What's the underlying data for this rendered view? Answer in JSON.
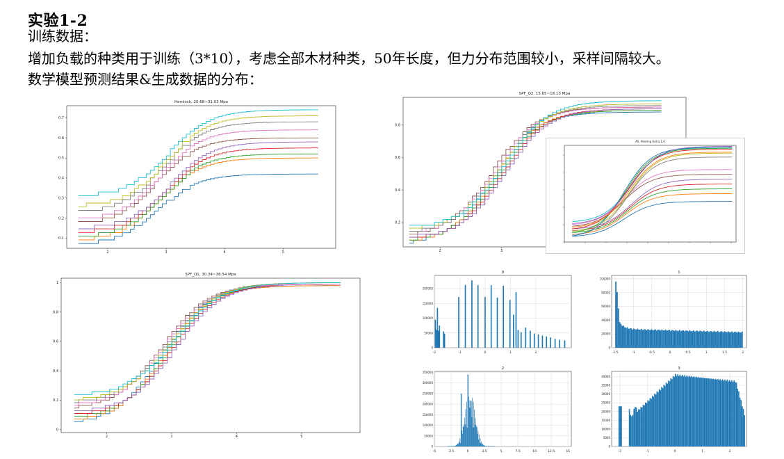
{
  "slide": {
    "title": "实验1-2",
    "line1": "训练数据：",
    "line2": "增加负载的种类用于训练（3*10），考虑全部木材种类，50年长度，但力分布范围较小，采样间隔较大。",
    "line3": "数学模型预测结果&生成数据的分布："
  },
  "chart_data": [
    {
      "type": "line",
      "title": "Hemlock, 20.68~31.03 Mpa",
      "xlim": [
        1.3,
        5.9
      ],
      "ylim": [
        0.05,
        0.76
      ],
      "xticks": [
        2,
        3,
        4,
        5
      ],
      "yticks": [
        0.1,
        0.2,
        0.3,
        0.4,
        0.5,
        0.6,
        0.7
      ],
      "x_range": [
        1.5,
        5.6
      ],
      "series": [
        {
          "values_low": 0.07,
          "values_high": 0.42,
          "color": "#1f77b4"
        },
        {
          "values_low": 0.09,
          "values_high": 0.5,
          "color": "#ff7f0e"
        },
        {
          "values_low": 0.11,
          "values_high": 0.52,
          "color": "#2ca02c"
        },
        {
          "values_low": 0.13,
          "values_high": 0.55,
          "color": "#d62728"
        },
        {
          "values_low": 0.15,
          "values_high": 0.58,
          "color": "#9467bd"
        },
        {
          "values_low": 0.17,
          "values_high": 0.6,
          "color": "#8c564b"
        },
        {
          "values_low": 0.19,
          "values_high": 0.64,
          "color": "#e377c2"
        },
        {
          "values_low": 0.23,
          "values_high": 0.68,
          "color": "#7f7f7f"
        },
        {
          "values_low": 0.26,
          "values_high": 0.71,
          "color": "#bcbd22"
        },
        {
          "values_low": 0.31,
          "values_high": 0.74,
          "color": "#17becf"
        }
      ]
    },
    {
      "type": "line",
      "title": "SPF_Q2, 15.65~18.13 Mpa",
      "xlim": [
        1.4,
        6.0
      ],
      "ylim": [
        0.05,
        0.97
      ],
      "xticks": [
        2,
        3,
        4,
        5
      ],
      "yticks": [
        0.2,
        0.4,
        0.6,
        0.8
      ],
      "x_range": [
        1.5,
        5.6
      ],
      "series": [
        {
          "values_low": 0.07,
          "values_high": 0.88,
          "color": "#1f77b4"
        },
        {
          "values_low": 0.08,
          "values_high": 0.89,
          "color": "#ff7f0e"
        },
        {
          "values_low": 0.09,
          "values_high": 0.89,
          "color": "#2ca02c"
        },
        {
          "values_low": 0.1,
          "values_high": 0.9,
          "color": "#d62728"
        },
        {
          "values_low": 0.11,
          "values_high": 0.9,
          "color": "#9467bd"
        },
        {
          "values_low": 0.12,
          "values_high": 0.91,
          "color": "#8c564b"
        },
        {
          "values_low": 0.13,
          "values_high": 0.91,
          "color": "#e377c2"
        },
        {
          "values_low": 0.14,
          "values_high": 0.92,
          "color": "#7f7f7f"
        },
        {
          "values_low": 0.16,
          "values_high": 0.93,
          "color": "#bcbd22"
        },
        {
          "values_low": 0.17,
          "values_high": 0.95,
          "color": "#17becf"
        }
      ]
    },
    {
      "type": "line",
      "title": "All, Altering Extra 1.0",
      "xlim": [
        1.3,
        5.7
      ],
      "ylim": [
        0.0,
        1.0
      ],
      "xticks": [],
      "yticks": [],
      "x_range": [
        1.5,
        5.6
      ],
      "series": [
        {
          "values_low": 0.05,
          "values_high": 0.42,
          "color": "#1f77b4"
        },
        {
          "values_low": 0.07,
          "values_high": 0.5,
          "color": "#ff7f0e"
        },
        {
          "values_low": 0.09,
          "values_high": 0.55,
          "color": "#2ca02c"
        },
        {
          "values_low": 0.11,
          "values_high": 0.6,
          "color": "#d62728"
        },
        {
          "values_low": 0.13,
          "values_high": 0.65,
          "color": "#9467bd"
        },
        {
          "values_low": 0.15,
          "values_high": 0.7,
          "color": "#8c564b"
        },
        {
          "values_low": 0.17,
          "values_high": 0.75,
          "color": "#e377c2"
        },
        {
          "values_low": 0.06,
          "values_high": 0.88,
          "color": "#7f7f7f"
        },
        {
          "values_low": 0.1,
          "values_high": 0.92,
          "color": "#bcbd22"
        },
        {
          "values_low": 0.2,
          "values_high": 0.98,
          "color": "#17becf"
        },
        {
          "values_low": 0.04,
          "values_high": 0.98,
          "color": "#1f77b4"
        },
        {
          "values_low": 0.08,
          "values_high": 0.97,
          "color": "#2ca02c"
        },
        {
          "values_low": 0.12,
          "values_high": 0.96,
          "color": "#d62728"
        },
        {
          "values_low": 0.14,
          "values_high": 0.93,
          "color": "#ff7f0e"
        },
        {
          "values_low": 0.18,
          "values_high": 0.99,
          "color": "#9467bd"
        }
      ]
    },
    {
      "type": "line",
      "title": "SPF_Q1, 30.34~36.54 Mpa",
      "xlim": [
        1.3,
        5.9
      ],
      "ylim": [
        -0.02,
        1.03
      ],
      "xticks": [
        2,
        3,
        4,
        5
      ],
      "yticks": [
        0.0,
        0.2,
        0.4,
        0.6,
        0.8,
        1.0
      ],
      "x_range": [
        1.5,
        5.6
      ],
      "series": [
        {
          "values_low": 0.04,
          "values_high": 0.98,
          "color": "#1f77b4"
        },
        {
          "values_low": 0.06,
          "values_high": 0.98,
          "color": "#ff7f0e"
        },
        {
          "values_low": 0.08,
          "values_high": 0.99,
          "color": "#2ca02c"
        },
        {
          "values_low": 0.1,
          "values_high": 0.99,
          "color": "#d62728"
        },
        {
          "values_low": 0.12,
          "values_high": 0.99,
          "color": "#9467bd"
        },
        {
          "values_low": 0.14,
          "values_high": 0.99,
          "color": "#8c564b"
        },
        {
          "values_low": 0.16,
          "values_high": 0.99,
          "color": "#e377c2"
        },
        {
          "values_low": 0.18,
          "values_high": 1.0,
          "color": "#7f7f7f"
        },
        {
          "values_low": 0.2,
          "values_high": 1.0,
          "color": "#bcbd22"
        },
        {
          "values_low": 0.23,
          "values_high": 1.0,
          "color": "#17becf"
        }
      ]
    },
    {
      "type": "bar",
      "title": "0",
      "xlim": [
        -2.0,
        3.4
      ],
      "ylim": [
        0,
        245000
      ],
      "xticks": [
        -2,
        -1,
        0,
        1,
        2
      ],
      "yticks": [
        0,
        50000,
        100000,
        150000,
        200000
      ],
      "bin_width": 0.045,
      "bins": [
        [
          -1.96,
          95000
        ],
        [
          -1.92,
          60000
        ],
        [
          -1.88,
          135000
        ],
        [
          -1.84,
          58000
        ],
        [
          -1.8,
          75000
        ],
        [
          -1.64,
          55000
        ],
        [
          -1.6,
          48000
        ],
        [
          -1.04,
          172000
        ],
        [
          -0.78,
          213000
        ],
        [
          -0.52,
          228000
        ],
        [
          -0.28,
          212000
        ],
        [
          0.0,
          172000
        ],
        [
          0.24,
          212000
        ],
        [
          0.48,
          170000
        ],
        [
          0.72,
          210000
        ],
        [
          0.98,
          162000
        ],
        [
          1.22,
          188000
        ],
        [
          1.12,
          112000
        ],
        [
          1.42,
          53000
        ],
        [
          1.6,
          68000
        ],
        [
          1.78,
          58000
        ],
        [
          1.94,
          48000
        ],
        [
          2.1,
          45000
        ],
        [
          2.26,
          41000
        ],
        [
          2.42,
          38000
        ],
        [
          2.58,
          35000
        ],
        [
          2.76,
          30000
        ],
        [
          2.94,
          27000
        ],
        [
          3.14,
          25000
        ],
        [
          1.3,
          60000
        ]
      ]
    },
    {
      "type": "bar",
      "title": "1",
      "xlim": [
        -1.6,
        2.1
      ],
      "ylim": [
        0,
        105000
      ],
      "xticks": [
        -1.5,
        -1.0,
        -0.5,
        0.0,
        0.5,
        1.0,
        1.5,
        2.0
      ],
      "yticks": [
        0,
        20000,
        40000,
        60000,
        80000,
        100000
      ],
      "bin_start": -1.5,
      "bin_end": 2.0,
      "profile": "decay"
    },
    {
      "type": "bar",
      "title": "2",
      "xlim": [
        -5.0,
        15.5
      ],
      "ylim": [
        0,
        355000
      ],
      "xticks": [
        -5.0,
        -2.5,
        0.0,
        2.5,
        5.0,
        7.5,
        10.0,
        12.5,
        15.0
      ],
      "yticks": [
        0,
        50000,
        100000,
        150000,
        200000,
        250000,
        300000,
        350000
      ],
      "bin_start": -3.0,
      "bin_end": 4.0,
      "profile": "spiky"
    },
    {
      "type": "bar",
      "title": "3",
      "xlim": [
        -2.3,
        2.6
      ],
      "ylim": [
        0,
        43000
      ],
      "xticks": [
        -2,
        -1,
        0,
        1,
        2
      ],
      "yticks": [
        0,
        5000,
        10000,
        15000,
        20000,
        25000,
        30000,
        35000,
        40000
      ],
      "bin_start": -2.05,
      "bin_end": 2.55,
      "profile": "plateau"
    }
  ]
}
